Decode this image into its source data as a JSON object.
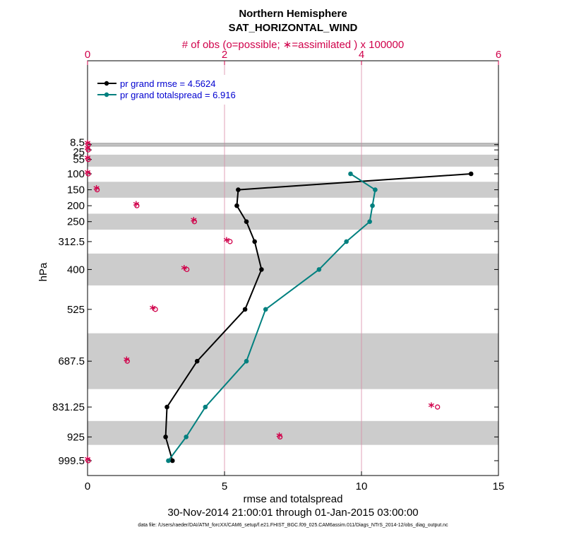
{
  "chart_data": {
    "type": "line",
    "title": "Northern Hemisphere",
    "subtitle": "SAT_HORIZONTAL_WIND",
    "top_axis_label": "# of obs (o=possible; ∗=assimilated ) x 100000",
    "xlabel": "rmse and totalspread",
    "ylabel": "hPa",
    "date_range": "30-Nov-2014 21:00:01 through 01-Jan-2015 03:00:00",
    "footer": "data file: /Users/raeder/DAI/ATM_forcXX/CAM6_setup/f.e21.FHIST_BGC.f09_025.CAM6assim.011/Diags_NTrS_2014-12/obs_diag_output.nc",
    "xlim": [
      0,
      15
    ],
    "top_xlim": [
      0,
      6
    ],
    "x_ticks": [
      "0",
      "5",
      "10",
      "15"
    ],
    "top_ticks": [
      "0",
      "2",
      "4",
      "6"
    ],
    "y_ticks": [
      "8.5",
      "25",
      "55",
      "100",
      "150",
      "200",
      "250",
      "312.5",
      "400",
      "525",
      "687.5",
      "831.25",
      "925",
      "999.5"
    ],
    "y_levels": [
      8.5,
      25,
      55,
      100,
      150,
      200,
      250,
      312.5,
      400,
      525,
      687.5,
      831.25,
      925,
      999.5
    ],
    "shaded_bands_hpa": [
      [
        2,
        15
      ],
      [
        40,
        77.5
      ],
      [
        125,
        175
      ],
      [
        225,
        275
      ],
      [
        350,
        450
      ],
      [
        600,
        775
      ],
      [
        875,
        950
      ]
    ],
    "series": [
      {
        "name": "pr grand rmse = 4.5624",
        "color": "#000000",
        "levels": [
          100,
          150,
          200,
          250,
          312.5,
          400,
          525,
          687.5,
          831.25,
          925,
          999.5
        ],
        "values": [
          14.0,
          5.5,
          5.45,
          5.8,
          6.1,
          6.35,
          5.75,
          4.0,
          2.9,
          2.85,
          3.1
        ]
      },
      {
        "name": "pr grand totalspread = 6.916",
        "color": "#00807f",
        "levels": [
          100,
          150,
          200,
          250,
          312.5,
          400,
          525,
          687.5,
          831.25,
          925,
          999.5
        ],
        "values": [
          9.6,
          10.5,
          10.4,
          10.3,
          9.45,
          8.45,
          6.5,
          5.8,
          4.3,
          3.6,
          2.95
        ]
      }
    ],
    "obs_counts": {
      "levels": [
        8.5,
        25,
        55,
        100,
        150,
        200,
        250,
        312.5,
        400,
        525,
        687.5,
        831.25,
        925,
        999.5
      ],
      "possible_x100000": [
        0,
        0,
        0,
        0,
        0.13,
        0.71,
        1.55,
        2.07,
        1.44,
        0.98,
        0.57,
        5.1,
        2.8,
        0
      ],
      "assimilated_x100000": [
        0,
        0,
        0,
        0,
        0.13,
        0.71,
        1.55,
        2.03,
        1.41,
        0.95,
        0.57,
        5.02,
        2.8,
        0
      ]
    }
  }
}
